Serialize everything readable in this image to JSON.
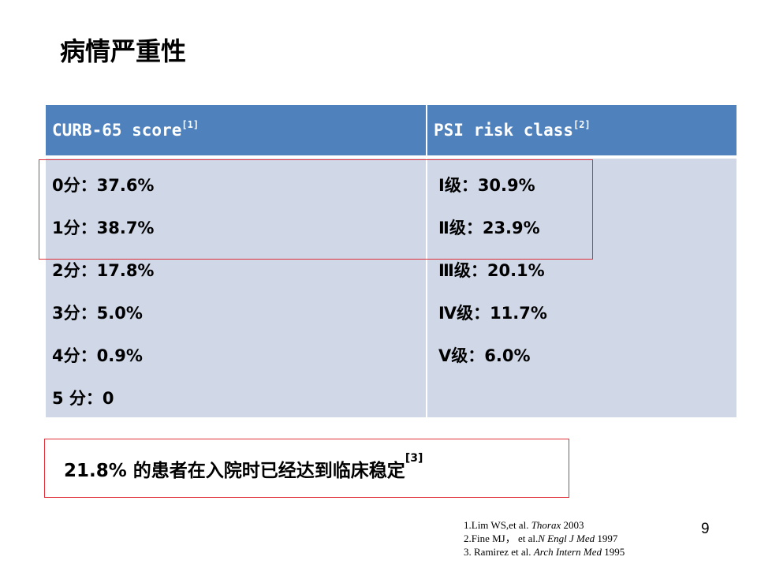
{
  "title": "病情严重性",
  "table": {
    "left_header": "CURB-65 score",
    "left_header_sup": "[1]",
    "right_header": "PSI risk class",
    "right_header_sup": "[2]",
    "curb65_rows": [
      "0分：37.6%",
      "1分：38.7%",
      "2分：17.8%",
      "3分：5.0%",
      "4分：0.9%",
      "5 分：0"
    ],
    "psi_rows": [
      "Ⅰ级：30.9%",
      "Ⅱ级：23.9%",
      "Ⅲ级：20.1%",
      "Ⅳ级：11.7%",
      "Ⅴ级：6.0%"
    ]
  },
  "note": {
    "text": "21.8% 的患者在入院时已经达到临床稳定",
    "sup": "[3]"
  },
  "references": [
    {
      "prefix": "1.Lim WS,et al. ",
      "journal": "Thorax",
      "year": " 2003"
    },
    {
      "prefix": "2.Fine MJ， et al.",
      "journal": "N Engl J Med",
      "year": " 1997"
    },
    {
      "prefix": "3. Ramirez et al. ",
      "journal": "Arch Intern Med",
      "year": " 1995"
    }
  ],
  "page_number": "9",
  "colors": {
    "header": "#4f81bd",
    "cell": "#d0d8e8",
    "highlight_border": "#e0303a"
  }
}
